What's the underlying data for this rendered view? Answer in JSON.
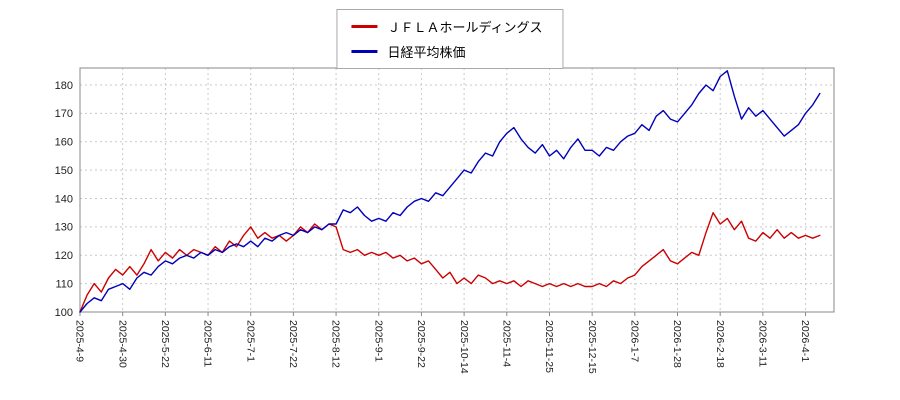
{
  "page": {
    "background": "#ffffff"
  },
  "legend": {
    "items": [
      {
        "label": "ＪＦＬＡホールディングス",
        "color": "#cc0000"
      },
      {
        "label": "日経平均株価",
        "color": "#0000bb"
      }
    ]
  },
  "chart_data": {
    "type": "line",
    "title": "",
    "xlabel": "",
    "ylabel": "",
    "ylim": [
      100,
      180
    ],
    "y_ticks": [
      100,
      110,
      120,
      130,
      140,
      150,
      160,
      170,
      180
    ],
    "x_tick_labels": [
      "2025-4-9",
      "2025-4-30",
      "2025-5-22",
      "2025-6-11",
      "2025-7-1",
      "2025-7-22",
      "2025-8-12",
      "2025-9-1",
      "2025-9-22",
      "2025-10-14",
      "2025-11-4",
      "2025-11-25",
      "2025-12-15",
      "2026-1-7",
      "2026-1-28",
      "2026-2-18",
      "2026-3-11",
      "2026-4-1"
    ],
    "x_tick_step": 6,
    "x_domain": [
      0,
      106
    ],
    "grid": true,
    "grid_color": "#c9c9c9",
    "axis_color": "#888888",
    "tick_label_color": "#222222",
    "legend_position": "top-center",
    "baseline_value": 100,
    "series": [
      {
        "name": "ＪＦＬＡホールディングス",
        "color": "#cc0000",
        "values": [
          100,
          106,
          110,
          107,
          112,
          115,
          113,
          116,
          113,
          117,
          122,
          118,
          121,
          119,
          122,
          120,
          122,
          121,
          120,
          123,
          121,
          125,
          123,
          127,
          130,
          126,
          128,
          126,
          127,
          125,
          127,
          130,
          128,
          131,
          129,
          131,
          130,
          122,
          121,
          122,
          120,
          121,
          120,
          121,
          119,
          120,
          118,
          119,
          117,
          118,
          115,
          112,
          114,
          110,
          112,
          110,
          113,
          112,
          110,
          111,
          110,
          111,
          109,
          111,
          110,
          109,
          110,
          109,
          110,
          109,
          110,
          109,
          109,
          110,
          109,
          111,
          110,
          112,
          113,
          116,
          118,
          120,
          122,
          118,
          117,
          119,
          121,
          120,
          128,
          135,
          131,
          133,
          129,
          132,
          126,
          125,
          128,
          126,
          129,
          126,
          128,
          126,
          127,
          126,
          127
        ]
      },
      {
        "name": "日経平均株価",
        "color": "#0000bb",
        "values": [
          100,
          103,
          105,
          104,
          108,
          109,
          110,
          108,
          112,
          114,
          113,
          116,
          118,
          117,
          119,
          120,
          119,
          121,
          120,
          122,
          121,
          123,
          124,
          123,
          125,
          123,
          126,
          125,
          127,
          128,
          127,
          129,
          128,
          130,
          129,
          131,
          131,
          136,
          135,
          137,
          134,
          132,
          133,
          132,
          135,
          134,
          137,
          139,
          140,
          139,
          142,
          141,
          144,
          147,
          150,
          149,
          153,
          156,
          155,
          160,
          163,
          165,
          161,
          158,
          156,
          159,
          155,
          157,
          154,
          158,
          161,
          157,
          157,
          155,
          158,
          157,
          160,
          162,
          163,
          166,
          164,
          169,
          171,
          168,
          167,
          170,
          173,
          177,
          180,
          178,
          183,
          185,
          176,
          168,
          172,
          169,
          171,
          168,
          165,
          162,
          164,
          166,
          170,
          173,
          177
        ]
      }
    ]
  }
}
